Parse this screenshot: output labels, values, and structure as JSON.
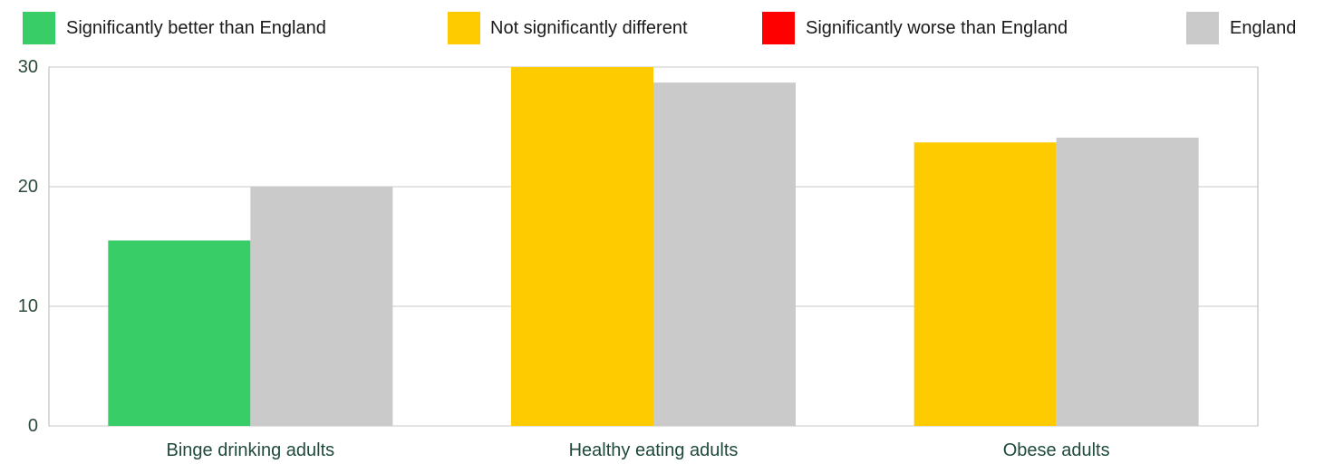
{
  "legend": {
    "items": [
      {
        "label": "Significantly better than England",
        "color": "#38cd67"
      },
      {
        "label": "Not significantly different",
        "color": "#fdcb00"
      },
      {
        "label": "Significantly worse than England",
        "color": "#fe0000"
      },
      {
        "label": "England",
        "color": "#cacaca"
      }
    ]
  },
  "chart_data": {
    "type": "bar",
    "title": "",
    "xlabel": "",
    "ylabel": "",
    "ylim": [
      0,
      30
    ],
    "yticks": [
      0,
      10,
      20,
      30
    ],
    "grid": true,
    "legend_position": "top",
    "categories": [
      "Binge drinking adults",
      "Healthy eating adults",
      "Obese adults"
    ],
    "series": [
      {
        "values": [
          15.5,
          30.0,
          23.7
        ],
        "colors": [
          "#38cd67",
          "#fdcb00",
          "#fdcb00"
        ]
      },
      {
        "name": "England",
        "values": [
          20.0,
          28.7,
          24.1
        ],
        "colors": [
          "#cacaca",
          "#cacaca",
          "#cacaca"
        ]
      }
    ]
  },
  "colors": {
    "gridline": "#c8c8c8",
    "plot_border": "#b4b4b4",
    "axis_text": "#2b4a3a",
    "category_text": "#1f4a3a"
  }
}
